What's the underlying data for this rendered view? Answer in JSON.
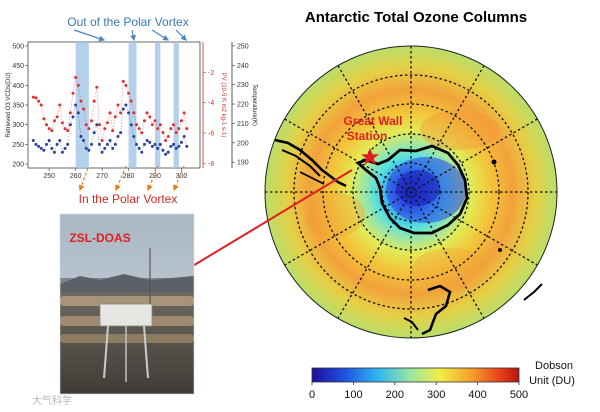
{
  "main_title": "Antarctic Total Ozone Columns",
  "station_label": [
    "Great Wall",
    "Station"
  ],
  "photo_label": "ZSL-DOAS",
  "out_vortex_label": "Out of the Polar Vortex",
  "in_vortex_label": "In the Polar Vortex",
  "colorbar": {
    "unit_lines": [
      "Dobson",
      "Unit (DU)"
    ],
    "ticks": [
      "0",
      "100",
      "200",
      "300",
      "400",
      "500"
    ]
  },
  "watermark": "大气科学",
  "colors": {
    "title": "#000000",
    "station_red": "#e02020",
    "arrow_blue": "#4a86c5",
    "arrow_orange": "#e0801e",
    "vortex_band": "#a7c8e8",
    "series_red": "#e03030",
    "series_blue": "#2c3f9a"
  },
  "chart_data": {
    "type": "scatter",
    "x_ticks": [
      "250",
      "260",
      "270",
      "280",
      "290",
      "300"
    ],
    "xlim": [
      242,
      307
    ],
    "left_axis": {
      "label": "Retrieved O3 VCDs(DU)",
      "ticks": [
        "200",
        "250",
        "300",
        "350",
        "400",
        "450",
        "500"
      ],
      "lim": [
        190,
        510
      ]
    },
    "right_axis_pv": {
      "label": "PV (10-5 K m2 kg-1 s-1)",
      "ticks": [
        "-2",
        "-4",
        "-6",
        "-8"
      ],
      "lim": [
        -8.3,
        0
      ]
    },
    "right_axis_temp": {
      "label": "Temperature(K)",
      "ticks": [
        "190",
        "200",
        "210",
        "220",
        "230",
        "240",
        "250"
      ],
      "lim": [
        187,
        252
      ]
    },
    "vortex_bands": [
      [
        260,
        265
      ],
      [
        280,
        283
      ],
      [
        290,
        292
      ],
      [
        297,
        299
      ]
    ],
    "series": [
      {
        "x": [
          244,
          245,
          246,
          247,
          248,
          249,
          250,
          251,
          252,
          253,
          254,
          255,
          256,
          257,
          258,
          259,
          260,
          261,
          262,
          263,
          264,
          265,
          266,
          267,
          268,
          269,
          270,
          271,
          272,
          273,
          274,
          275,
          276,
          277,
          278,
          279,
          280,
          281,
          282,
          283,
          284,
          285,
          286,
          287,
          288,
          289,
          290,
          291,
          292,
          293,
          294,
          295,
          296,
          297,
          298,
          299,
          300,
          301,
          302
        ],
        "values": [
          370,
          368,
          360,
          350,
          315,
          300,
          290,
          285,
          310,
          320,
          350,
          305,
          290,
          285,
          330,
          380,
          420,
          400,
          360,
          340,
          300,
          290,
          310,
          360,
          395,
          300,
          260,
          290,
          305,
          330,
          285,
          320,
          350,
          330,
          410,
          400,
          380,
          360,
          330,
          300,
          290,
          280,
          310,
          330,
          320,
          300,
          310,
          290,
          300,
          280,
          260,
          270,
          290,
          300,
          280,
          290,
          310,
          330,
          290
        ]
      },
      {
        "x": [
          244,
          245,
          246,
          247,
          248,
          249,
          250,
          251,
          252,
          253,
          254,
          255,
          256,
          257,
          258,
          259,
          260,
          261,
          262,
          263,
          264,
          265,
          266,
          267,
          268,
          269,
          270,
          271,
          272,
          273,
          274,
          275,
          276,
          277,
          278,
          279,
          280,
          281,
          282,
          283,
          284,
          285,
          286,
          287,
          288,
          289,
          290,
          291,
          292,
          293,
          294,
          295,
          296,
          297,
          298,
          299,
          300,
          301,
          302
        ],
        "values": [
          260,
          250,
          245,
          240,
          235,
          250,
          260,
          240,
          230,
          250,
          260,
          230,
          240,
          250,
          300,
          320,
          350,
          330,
          270,
          260,
          240,
          235,
          250,
          280,
          300,
          250,
          230,
          240,
          250,
          260,
          240,
          250,
          270,
          280,
          340,
          350,
          330,
          300,
          270,
          250,
          240,
          230,
          250,
          260,
          255,
          245,
          250,
          240,
          250,
          235,
          225,
          230,
          245,
          250,
          240,
          245,
          255,
          270,
          245
        ]
      }
    ]
  }
}
